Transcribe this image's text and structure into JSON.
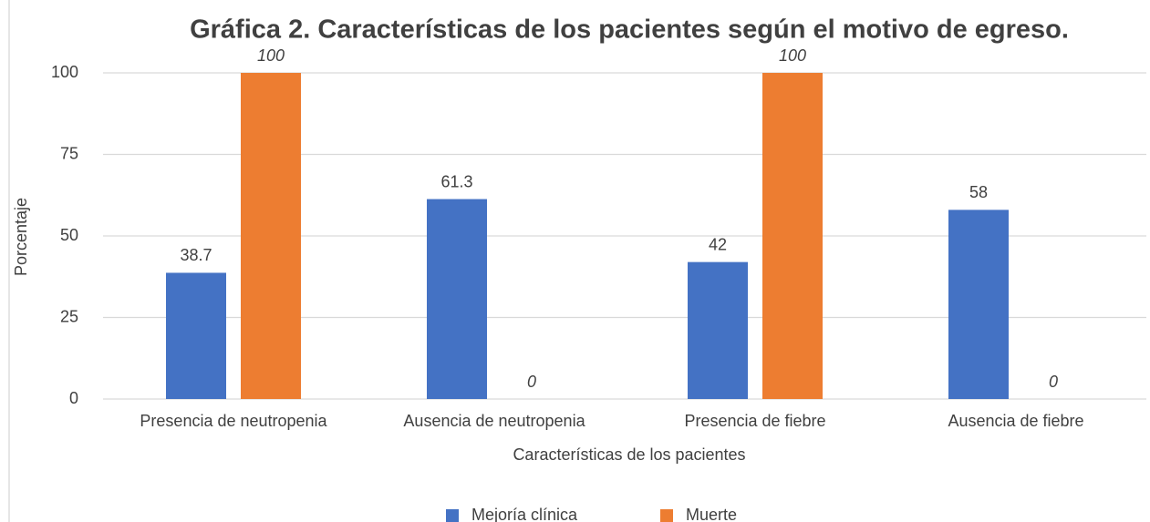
{
  "chart_data": {
    "type": "bar",
    "title": "Gráfica 2. Características de los pacientes según el motivo de egreso.",
    "x_label": "Características de los pacientes",
    "y_label": "Porcentaje",
    "categories": [
      "Presencia de neutropenia",
      "Ausencia de neutropenia",
      "Presencia de fiebre",
      "Ausencia de fiebre"
    ],
    "series": [
      {
        "name": "Mejoría clínica",
        "color": "#4472c4",
        "values": [
          38.7,
          61.3,
          42,
          58
        ]
      },
      {
        "name": "Muerte",
        "color": "#ed7d31",
        "values": [
          100,
          0,
          100,
          0
        ]
      }
    ],
    "ylim": [
      0,
      100
    ],
    "yticks": [
      0,
      25,
      50,
      75,
      100
    ],
    "grid": true,
    "legend": "bottom"
  }
}
